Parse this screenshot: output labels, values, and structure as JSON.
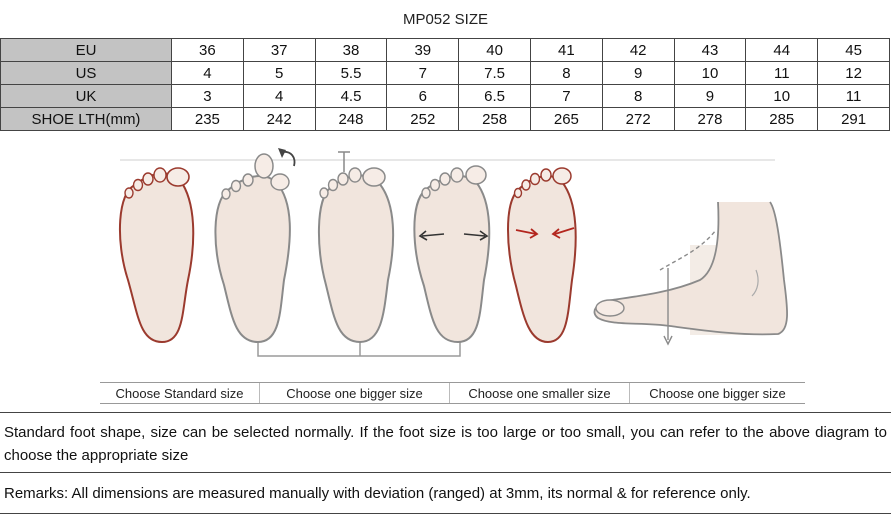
{
  "title": "MP052 SIZE",
  "size_table": {
    "rows": [
      {
        "label": "EU",
        "values": [
          "36",
          "37",
          "38",
          "39",
          "40",
          "41",
          "42",
          "43",
          "44",
          "45"
        ]
      },
      {
        "label": "US",
        "values": [
          "4",
          "5",
          "5.5",
          "7",
          "7.5",
          "8",
          "9",
          "10",
          "11",
          "12"
        ]
      },
      {
        "label": "UK",
        "values": [
          "3",
          "4",
          "4.5",
          "6",
          "6.5",
          "7",
          "8",
          "9",
          "10",
          "11"
        ]
      },
      {
        "label": "SHOE LTH(mm)",
        "values": [
          "235",
          "242",
          "248",
          "252",
          "258",
          "265",
          "272",
          "278",
          "285",
          "291"
        ]
      }
    ]
  },
  "diagram": {
    "labels": [
      "Choose Standard size",
      "Choose one bigger size",
      "Choose one smaller size",
      "Choose one bigger size"
    ],
    "colors": {
      "outline_red": "#9b3a2e",
      "outline_gray": "#8a8a8a",
      "fill": "#f1e5dd"
    }
  },
  "notes": {
    "line1": "Standard foot shape, size can be selected normally. If the foot size is too large or too small, you can refer to the above diagram to choose the appropriate size",
    "line2": "Remarks:  All dimensions are measured manually with deviation  (ranged)  at 3mm, its normal & for reference only."
  }
}
